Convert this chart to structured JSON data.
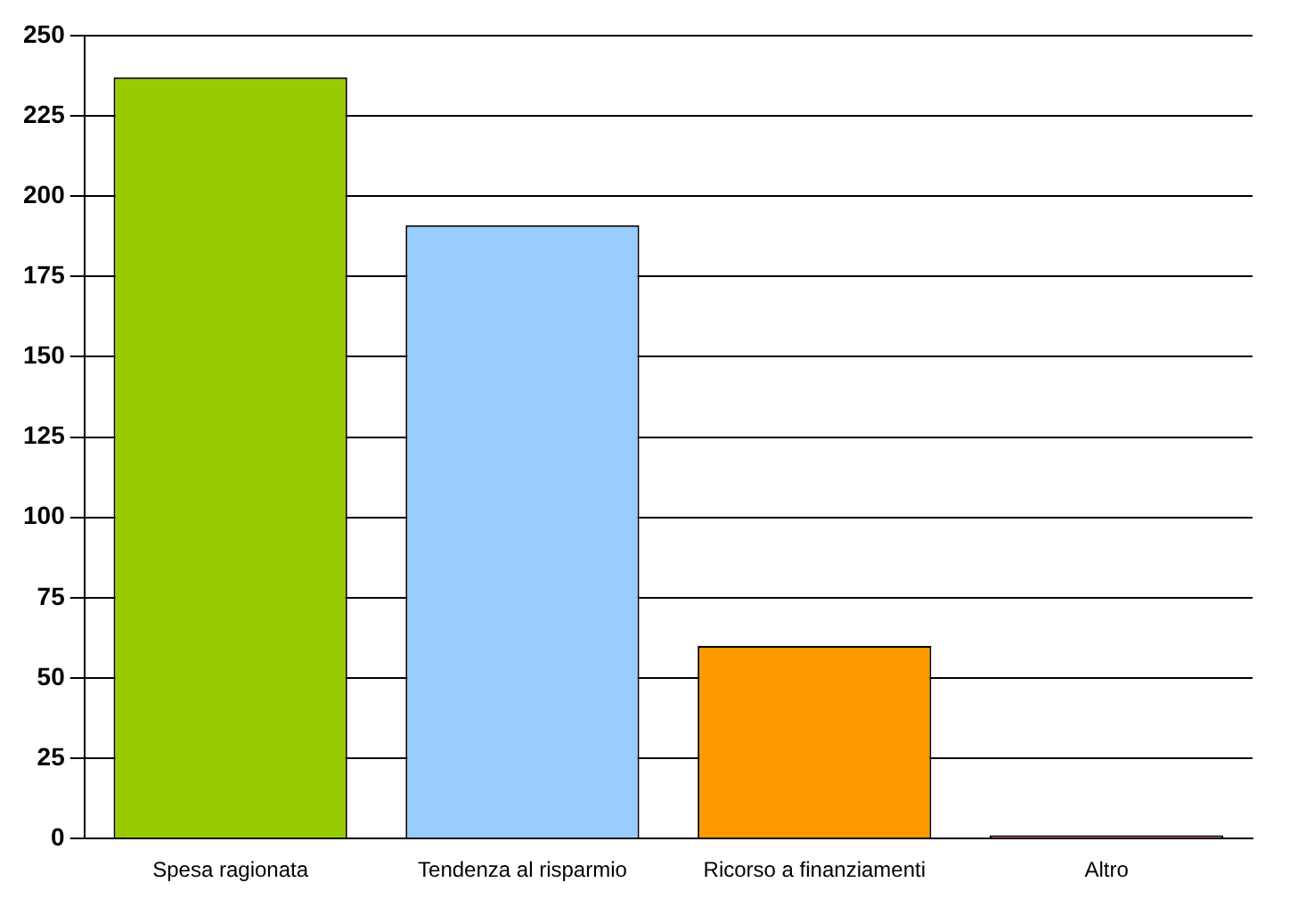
{
  "chart_data": {
    "type": "bar",
    "categories": [
      "Spesa ragionata",
      "Tendenza al risparmio",
      "Ricorso a finanziamenti",
      "Altro"
    ],
    "values": [
      237,
      191,
      60,
      1
    ],
    "colors": [
      "#99cc00",
      "#99ccff",
      "#ff9900",
      "#cc6699"
    ],
    "ylim": [
      0,
      250
    ],
    "yticks": [
      0,
      25,
      50,
      75,
      100,
      125,
      150,
      175,
      200,
      225,
      250
    ],
    "grid": "y",
    "legend": false
  }
}
